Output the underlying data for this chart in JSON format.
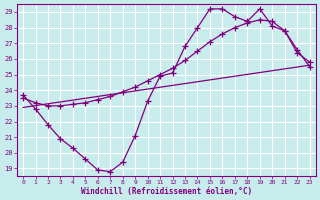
{
  "bg_color": "#c8ecec",
  "grid_color": "#ffffff",
  "line_color": "#800080",
  "xlabel": "Windchill (Refroidissement éolien,°C)",
  "xmin": 0,
  "xmax": 23,
  "ymin": 19,
  "ymax": 29,
  "line1_x": [
    0,
    1,
    2,
    3,
    4,
    5,
    6,
    7,
    8,
    9,
    10,
    11,
    12,
    13,
    14,
    15,
    16,
    17,
    18,
    19,
    20,
    21,
    22,
    23
  ],
  "line1_y": [
    23.7,
    22.8,
    21.8,
    20.9,
    20.3,
    19.6,
    18.9,
    18.8,
    19.4,
    21.1,
    23.3,
    24.9,
    25.1,
    26.8,
    28.0,
    29.2,
    29.2,
    28.7,
    28.4,
    29.2,
    28.1,
    27.8,
    26.4,
    25.8
  ],
  "line2_x": [
    0,
    23
  ],
  "line2_y": [
    22.9,
    25.6
  ],
  "line3_x": [
    0,
    1,
    2,
    3,
    4,
    5,
    6,
    7,
    8,
    9,
    10,
    11,
    12,
    13,
    14,
    15,
    16,
    17,
    18,
    19,
    20,
    21,
    22,
    23
  ],
  "line3_y": [
    23.5,
    23.2,
    23.0,
    23.0,
    23.1,
    23.2,
    23.4,
    23.6,
    23.9,
    24.2,
    24.6,
    25.0,
    25.4,
    25.9,
    26.5,
    27.1,
    27.6,
    28.0,
    28.3,
    28.5,
    28.4,
    27.8,
    26.6,
    25.5
  ]
}
